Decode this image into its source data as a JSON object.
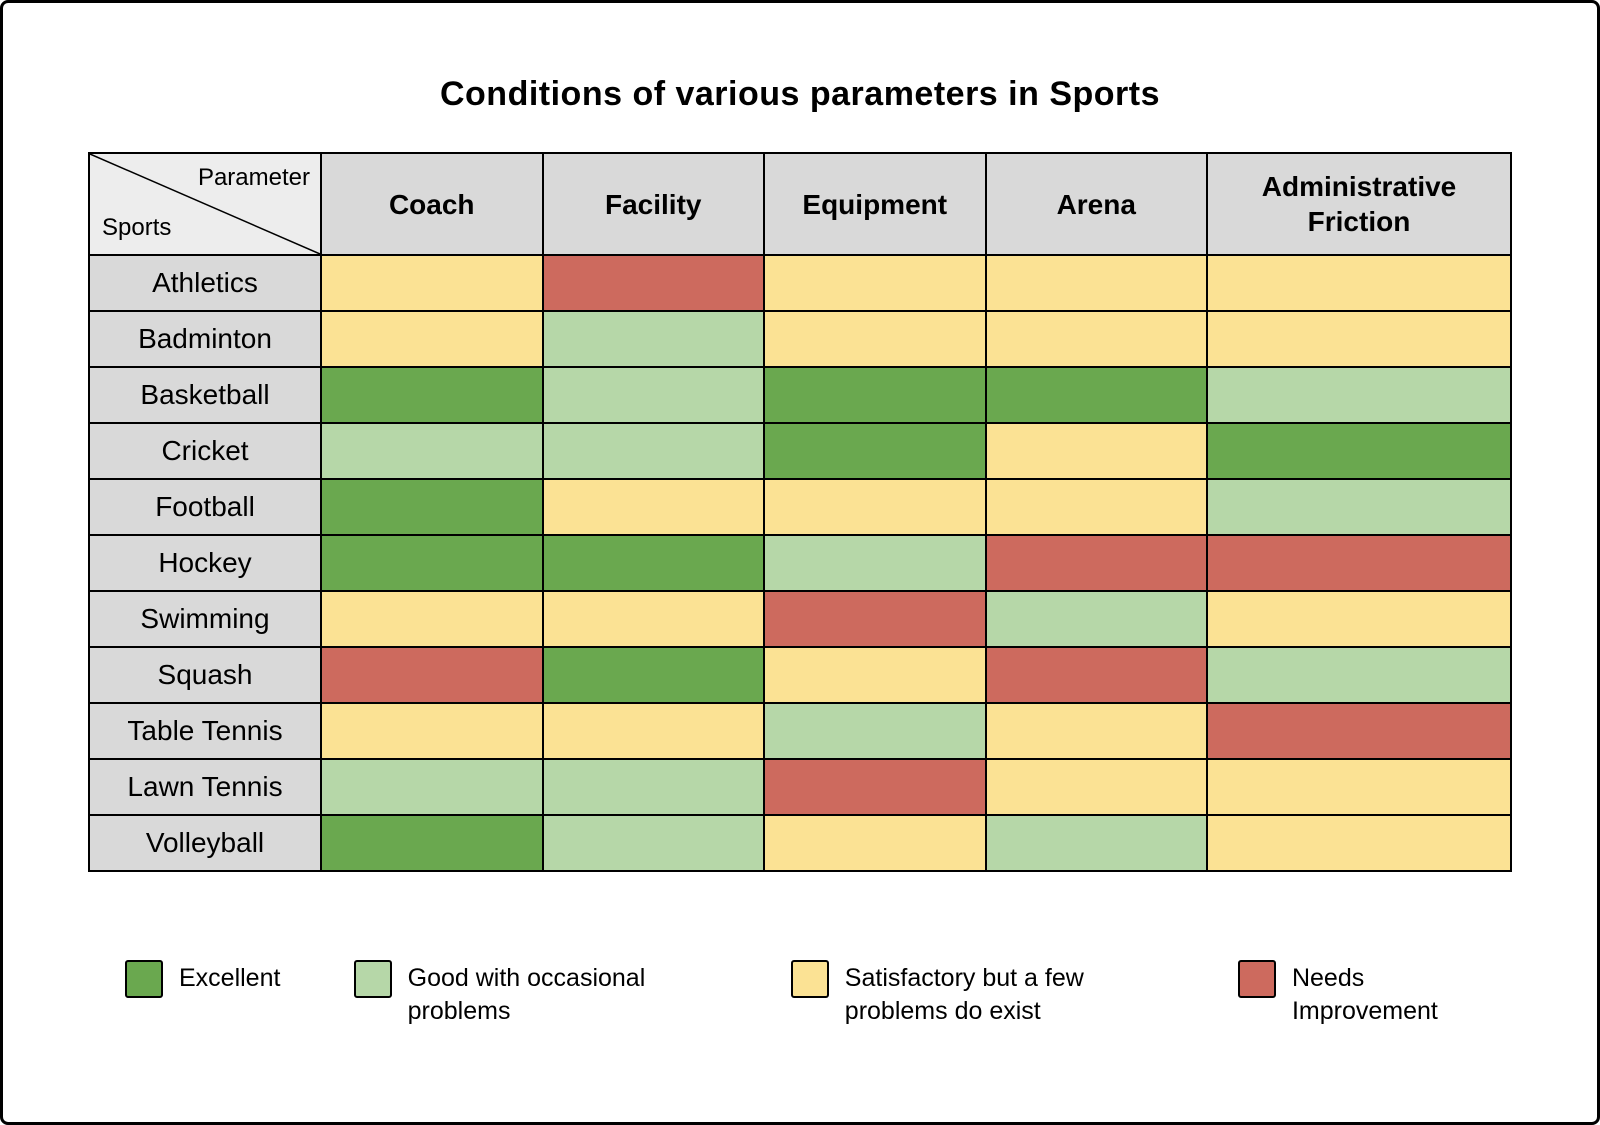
{
  "chart_data": {
    "type": "heatmap",
    "title": "Conditions of various parameters in Sports",
    "corner": {
      "top_label": "Parameter",
      "bottom_label": "Sports"
    },
    "x_categories": [
      "Coach",
      "Facility",
      "Equipment",
      "Arena",
      "Administrative Friction"
    ],
    "y_categories": [
      "Athletics",
      "Badminton",
      "Basketball",
      "Cricket",
      "Football",
      "Hockey",
      "Swimming",
      "Squash",
      "Table Tennis",
      "Lawn Tennis",
      "Volleyball"
    ],
    "values": [
      [
        "satisfactory",
        "needs_improvement",
        "satisfactory",
        "satisfactory",
        "satisfactory"
      ],
      [
        "satisfactory",
        "good",
        "satisfactory",
        "satisfactory",
        "satisfactory"
      ],
      [
        "excellent",
        "good",
        "excellent",
        "excellent",
        "good"
      ],
      [
        "good",
        "good",
        "excellent",
        "satisfactory",
        "excellent"
      ],
      [
        "excellent",
        "satisfactory",
        "satisfactory",
        "satisfactory",
        "good"
      ],
      [
        "excellent",
        "excellent",
        "good",
        "needs_improvement",
        "needs_improvement"
      ],
      [
        "satisfactory",
        "satisfactory",
        "needs_improvement",
        "good",
        "satisfactory"
      ],
      [
        "needs_improvement",
        "excellent",
        "satisfactory",
        "needs_improvement",
        "good"
      ],
      [
        "satisfactory",
        "satisfactory",
        "good",
        "satisfactory",
        "needs_improvement"
      ],
      [
        "good",
        "good",
        "needs_improvement",
        "satisfactory",
        "satisfactory"
      ],
      [
        "excellent",
        "good",
        "satisfactory",
        "good",
        "satisfactory"
      ]
    ],
    "rating_scale": {
      "excellent": {
        "label": "Excellent",
        "color": "#6aa84f"
      },
      "good": {
        "label": "Good with occasional problems",
        "color": "#b6d7a8"
      },
      "satisfactory": {
        "label": "Satisfactory but a few problems do exist",
        "color": "#fbe294"
      },
      "needs_improvement": {
        "label": "Needs Improvement",
        "color": "#cd6a5e"
      }
    },
    "legend_order": [
      "excellent",
      "good",
      "satisfactory",
      "needs_improvement"
    ],
    "legend_position": "bottom",
    "header_background": "#d9d9d9",
    "corner_background": "#ededed"
  }
}
